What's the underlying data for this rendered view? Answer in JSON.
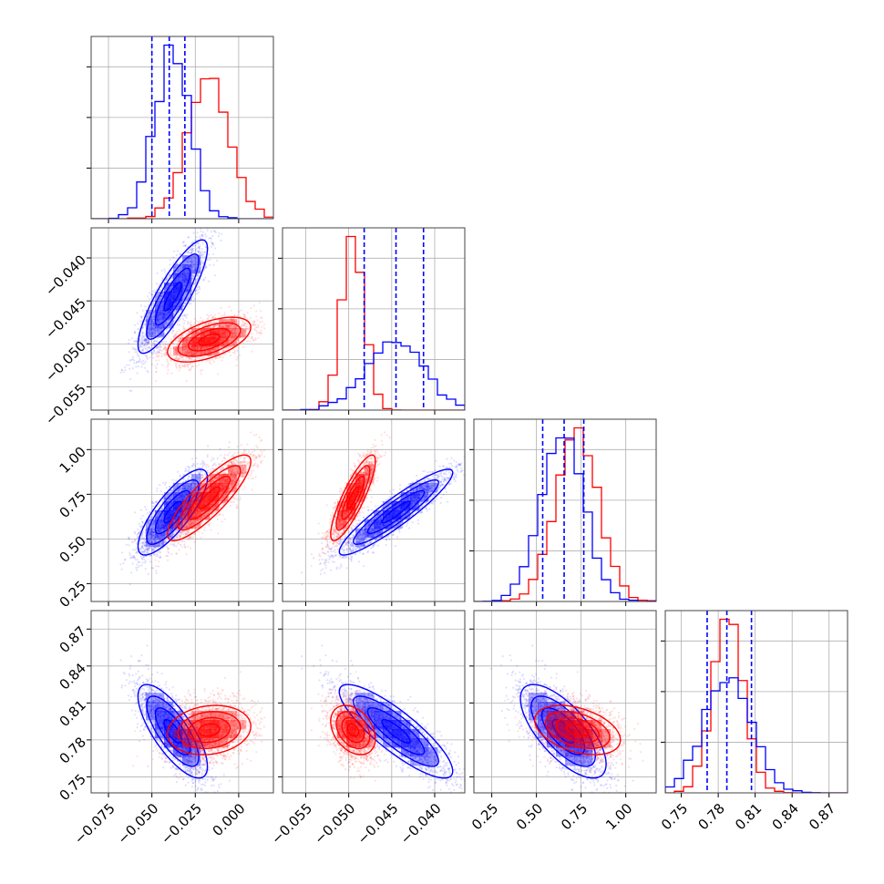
{
  "chart_data": {
    "type": "corner",
    "colors": {
      "series_a": "#0000ff",
      "series_b": "#ff0000",
      "grid": "#b0b0b0",
      "axes": "#000000"
    },
    "params": [
      {
        "range": [
          -0.085,
          0.02
        ],
        "ticks": [
          -0.075,
          -0.05,
          -0.025,
          0.0
        ],
        "tick_labels": [
          "−0.075",
          "−0.050",
          "−0.025",
          "0.000"
        ]
      },
      {
        "range": [
          -0.0577,
          -0.0365
        ],
        "ticks": [
          -0.055,
          -0.05,
          -0.045,
          -0.04
        ],
        "tick_labels": [
          "−0.055",
          "−0.050",
          "−0.045",
          "−0.040"
        ]
      },
      {
        "range": [
          0.15,
          1.17
        ],
        "ticks": [
          0.25,
          0.5,
          0.75,
          1.0
        ],
        "tick_labels": [
          "0.25",
          "0.50",
          "0.75",
          "1.00"
        ]
      },
      {
        "range": [
          0.737,
          0.885
        ],
        "ticks": [
          0.75,
          0.78,
          0.81,
          0.84,
          0.87
        ],
        "tick_labels": [
          "0.75",
          "0.78",
          "0.81",
          "0.84",
          "0.87"
        ]
      }
    ],
    "quantiles": [
      [
        -0.05,
        -0.04,
        -0.031
      ],
      [
        -0.0482,
        -0.0445,
        -0.0413
      ],
      [
        0.535,
        0.655,
        0.765
      ],
      [
        0.771,
        0.787,
        0.807
      ]
    ],
    "series": [
      {
        "color": "#0000ff",
        "mean": [
          -0.038,
          -0.0445,
          0.65,
          0.787
        ],
        "sd": [
          0.01,
          0.0033,
          0.12,
          0.019
        ],
        "corr": [
          [
            1.0,
            0.85,
            0.8,
            -0.75
          ],
          [
            0.85,
            1.0,
            0.92,
            -0.85
          ],
          [
            0.8,
            0.92,
            1.0,
            -0.7
          ],
          [
            -0.75,
            -0.85,
            -0.7,
            1.0
          ]
        ]
      },
      {
        "color": "#ff0000",
        "mean": [
          -0.017,
          -0.0495,
          0.73,
          0.788
        ],
        "sd": [
          0.012,
          0.0013,
          0.12,
          0.01
        ],
        "corr": [
          [
            1.0,
            0.55,
            0.85,
            0.15
          ],
          [
            0.55,
            1.0,
            0.85,
            -0.35
          ],
          [
            0.85,
            0.85,
            1.0,
            -0.4
          ],
          [
            0.15,
            -0.35,
            -0.4,
            1.0
          ]
        ]
      }
    ]
  }
}
